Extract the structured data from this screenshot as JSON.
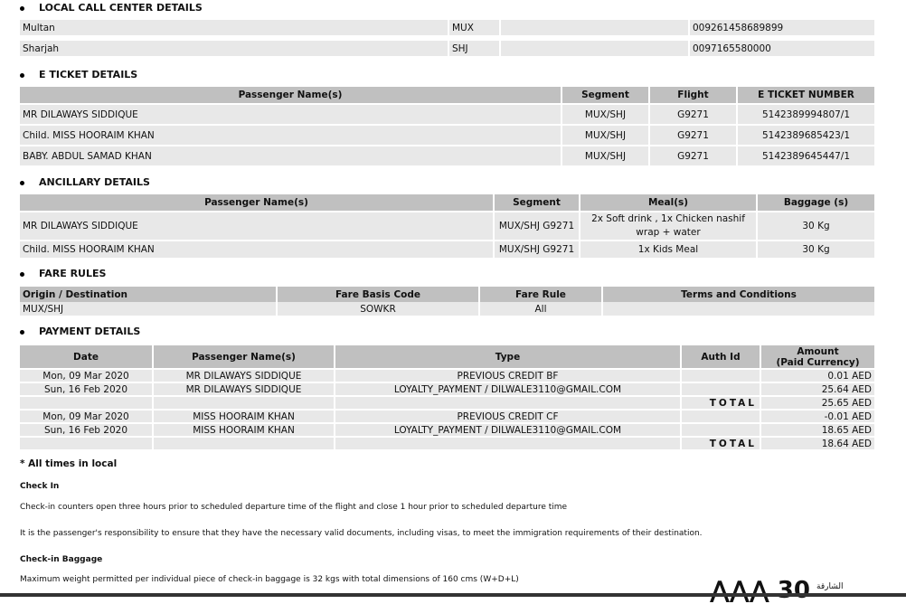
{
  "call_center": {
    "title": "LOCAL CALL CENTER DETAILS",
    "rows": [
      [
        "Multan",
        "MUX",
        "009261458689899"
      ],
      [
        "Sharjah",
        "SHJ",
        "0097165580000"
      ]
    ]
  },
  "eticket": {
    "title": "E TICKET DETAILS",
    "headers": [
      "Passenger Name(s)",
      "Segment",
      "Flight",
      "E TICKET NUMBER"
    ],
    "rows": [
      [
        "MR DILAWAYS SIDDIQUE",
        "MUX/SHJ",
        "G9271",
        "5142389994807/1"
      ],
      [
        "Child. MISS HOORAIM KHAN",
        "MUX/SHJ",
        "G9271",
        "5142389685423/1"
      ],
      [
        "BABY. ABDUL SAMAD KHAN",
        "MUX/SHJ",
        "G9271",
        "5142389645447/1"
      ]
    ]
  },
  "ancillary": {
    "title": "ANCILLARY DETAILS",
    "headers": [
      "Passenger Name(s)",
      "Segment",
      "Meal(s)",
      "Baggage (s)"
    ],
    "rows": [
      [
        "MR DILAWAYS SIDDIQUE",
        "MUX/SHJ G9271",
        "2x Soft drink , 1x Chicken nashif wrap + water",
        "30 Kg"
      ],
      [
        "Child. MISS HOORAIM KHAN",
        "MUX/SHJ G9271",
        "1x Kids Meal",
        "30 Kg"
      ]
    ]
  },
  "fare": {
    "title": "FARE RULES",
    "headers": [
      "Origin / Destination",
      "Fare Basis Code",
      "Fare Rule",
      "Terms and Conditions"
    ],
    "rows": [
      [
        "MUX/SHJ",
        "SOWKR",
        "All",
        ""
      ]
    ]
  },
  "payment": {
    "title": "PAYMENT DETAILS",
    "headers": [
      "Date",
      "Passenger Name(s)",
      "Type",
      "Auth Id",
      "Amount",
      "(Paid Currency)"
    ],
    "rows": [
      [
        "Mon, 09 Mar 2020",
        "MR DILAWAYS SIDDIQUE",
        "PREVIOUS CREDIT BF",
        "",
        "0.01 AED"
      ],
      [
        "Sun, 16 Feb 2020",
        "MR DILAWAYS SIDDIQUE",
        "LOYALTY_PAYMENT / DILWALE3110@GMAIL.COM",
        "",
        "25.64 AED"
      ],
      [
        "",
        "",
        "",
        "TOTAL",
        "25.65 AED"
      ],
      [
        "Mon, 09 Mar 2020",
        "MISS HOORAIM KHAN",
        "PREVIOUS CREDIT CF",
        "",
        "-0.01 AED"
      ],
      [
        "Sun, 16 Feb 2020",
        "MISS HOORAIM KHAN",
        "LOYALTY_PAYMENT / DILWALE3110@GMAIL.COM",
        "",
        "18.65 AED"
      ],
      [
        "",
        "",
        "",
        "TOTAL",
        "18.64 AED"
      ]
    ]
  },
  "notes": {
    "times": "* All times in local",
    "checkin_title": "Check In",
    "checkin_text": "Check-in counters open three hours prior to scheduled departure time of the flight and close 1 hour prior to scheduled departure time",
    "docs_text": "It is the passenger's responsibility to ensure that they have the necessary valid documents, including visas, to meet the immigration requirements of their destination.",
    "baggage_title": "Check-in Baggage",
    "baggage_text": "Maximum weight permitted per individual piece of check-in baggage is 32 kgs with total dimensions of 160 cms (W+D+L)"
  },
  "logo": {
    "text": "الشارقة 30"
  }
}
